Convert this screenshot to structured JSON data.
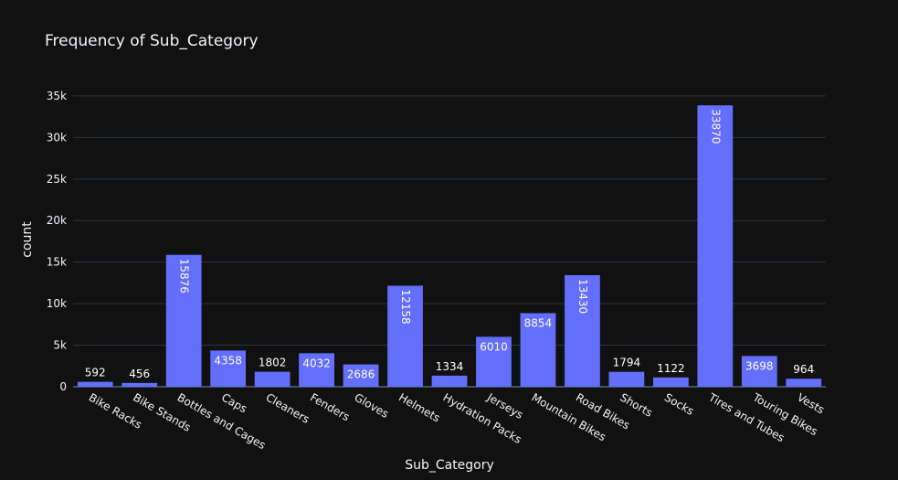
{
  "chart_data": {
    "type": "bar",
    "title": "Frequency of Sub_Category",
    "xlabel": "Sub_Category",
    "ylabel": "count",
    "categories": [
      "Bike Racks",
      "Bike Stands",
      "Bottles and Cages",
      "Caps",
      "Cleaners",
      "Fenders",
      "Gloves",
      "Helmets",
      "Hydration Packs",
      "Jerseys",
      "Mountain Bikes",
      "Road Bikes",
      "Shorts",
      "Socks",
      "Tires and Tubes",
      "Touring Bikes",
      "Vests"
    ],
    "values": [
      592,
      456,
      15876,
      4358,
      1802,
      4032,
      2686,
      12158,
      1334,
      6010,
      8854,
      13430,
      1794,
      1122,
      33870,
      3698,
      964
    ],
    "value_labels": [
      "592",
      "456",
      "15876",
      "4358",
      "1802",
      "4032",
      "2686",
      "12158",
      "1334",
      "6010",
      "8854",
      "13430",
      "1794",
      "1122",
      "33870",
      "3698",
      "964"
    ],
    "yticks": [
      0,
      5000,
      10000,
      15000,
      20000,
      25000,
      30000,
      35000
    ],
    "ytick_labels": [
      "0",
      "5k",
      "10k",
      "15k",
      "20k",
      "25k",
      "30k",
      "35k"
    ],
    "ylim": [
      0,
      35653
    ],
    "grid": true,
    "colors": {
      "background": "#111111",
      "bar": "#636efa",
      "grid": "#283442",
      "zero_line": "#506784",
      "text": "#f2f5fa"
    }
  }
}
